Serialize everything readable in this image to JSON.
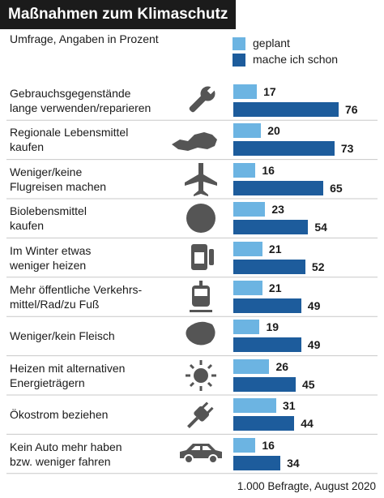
{
  "chart_data": {
    "type": "bar",
    "orientation": "horizontal",
    "title": "Maßnahmen zum Klimaschutz",
    "subtitle": "Umfrage, Angaben in Prozent",
    "categories": [
      "Gebrauchsgegenstände\nlange verwenden/reparieren",
      "Regionale Lebensmittel\nkaufen",
      "Weniger/keine\nFlugreisen machen",
      "Biolebensmittel\nkaufen",
      "Im Winter etwas\nweniger heizen",
      "Mehr öffentliche Verkehrs-\nmittel/Rad/zu Fuß",
      "Weniger/kein Fleisch",
      "Heizen mit alternativen\nEnergieträgern",
      "Ökostrom beziehen",
      "Kein Auto mehr haben\nbzw. weniger fahren"
    ],
    "series": [
      {
        "name": "geplant",
        "color": "#6cb4e2",
        "values": [
          17,
          20,
          16,
          23,
          21,
          21,
          19,
          26,
          31,
          16
        ]
      },
      {
        "name": "mache ich schon",
        "color": "#1d5c9c",
        "values": [
          76,
          73,
          65,
          54,
          52,
          49,
          49,
          45,
          44,
          34
        ]
      }
    ],
    "source": "1.000 Befragte, August 2020"
  }
}
